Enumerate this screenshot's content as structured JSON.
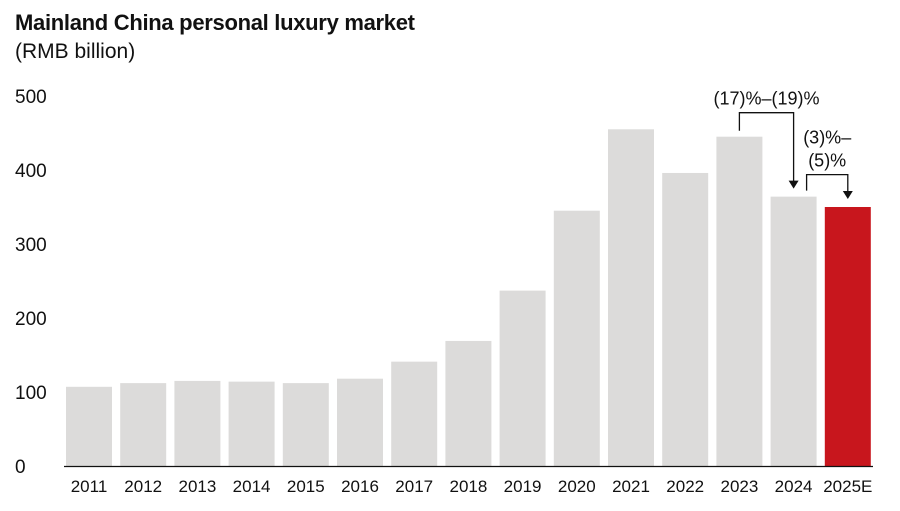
{
  "chart_data": {
    "type": "bar",
    "title": "Mainland China personal luxury market",
    "subtitle": "(RMB billion)",
    "xlabel": "",
    "ylabel": "",
    "ylim": [
      0,
      500
    ],
    "yticks": [
      0,
      100,
      200,
      300,
      400,
      500
    ],
    "grid": false,
    "categories": [
      "2011",
      "2012",
      "2013",
      "2014",
      "2015",
      "2016",
      "2017",
      "2018",
      "2019",
      "2020",
      "2021",
      "2022",
      "2023",
      "2024",
      "2025E"
    ],
    "values": [
      107,
      112,
      115,
      114,
      112,
      118,
      141,
      169,
      237,
      345,
      455,
      396,
      445,
      364,
      350
    ],
    "colors": {
      "default": "#dcdbda",
      "highlight": "#c8161d"
    },
    "highlight_category": "2025E",
    "annotations": [
      {
        "from": "2023",
        "to": "2024",
        "text_lines": [
          "(17)%–(19)%"
        ]
      },
      {
        "from": "2024",
        "to": "2025E",
        "text_lines": [
          "(3)%–",
          "(5)%"
        ]
      }
    ]
  }
}
